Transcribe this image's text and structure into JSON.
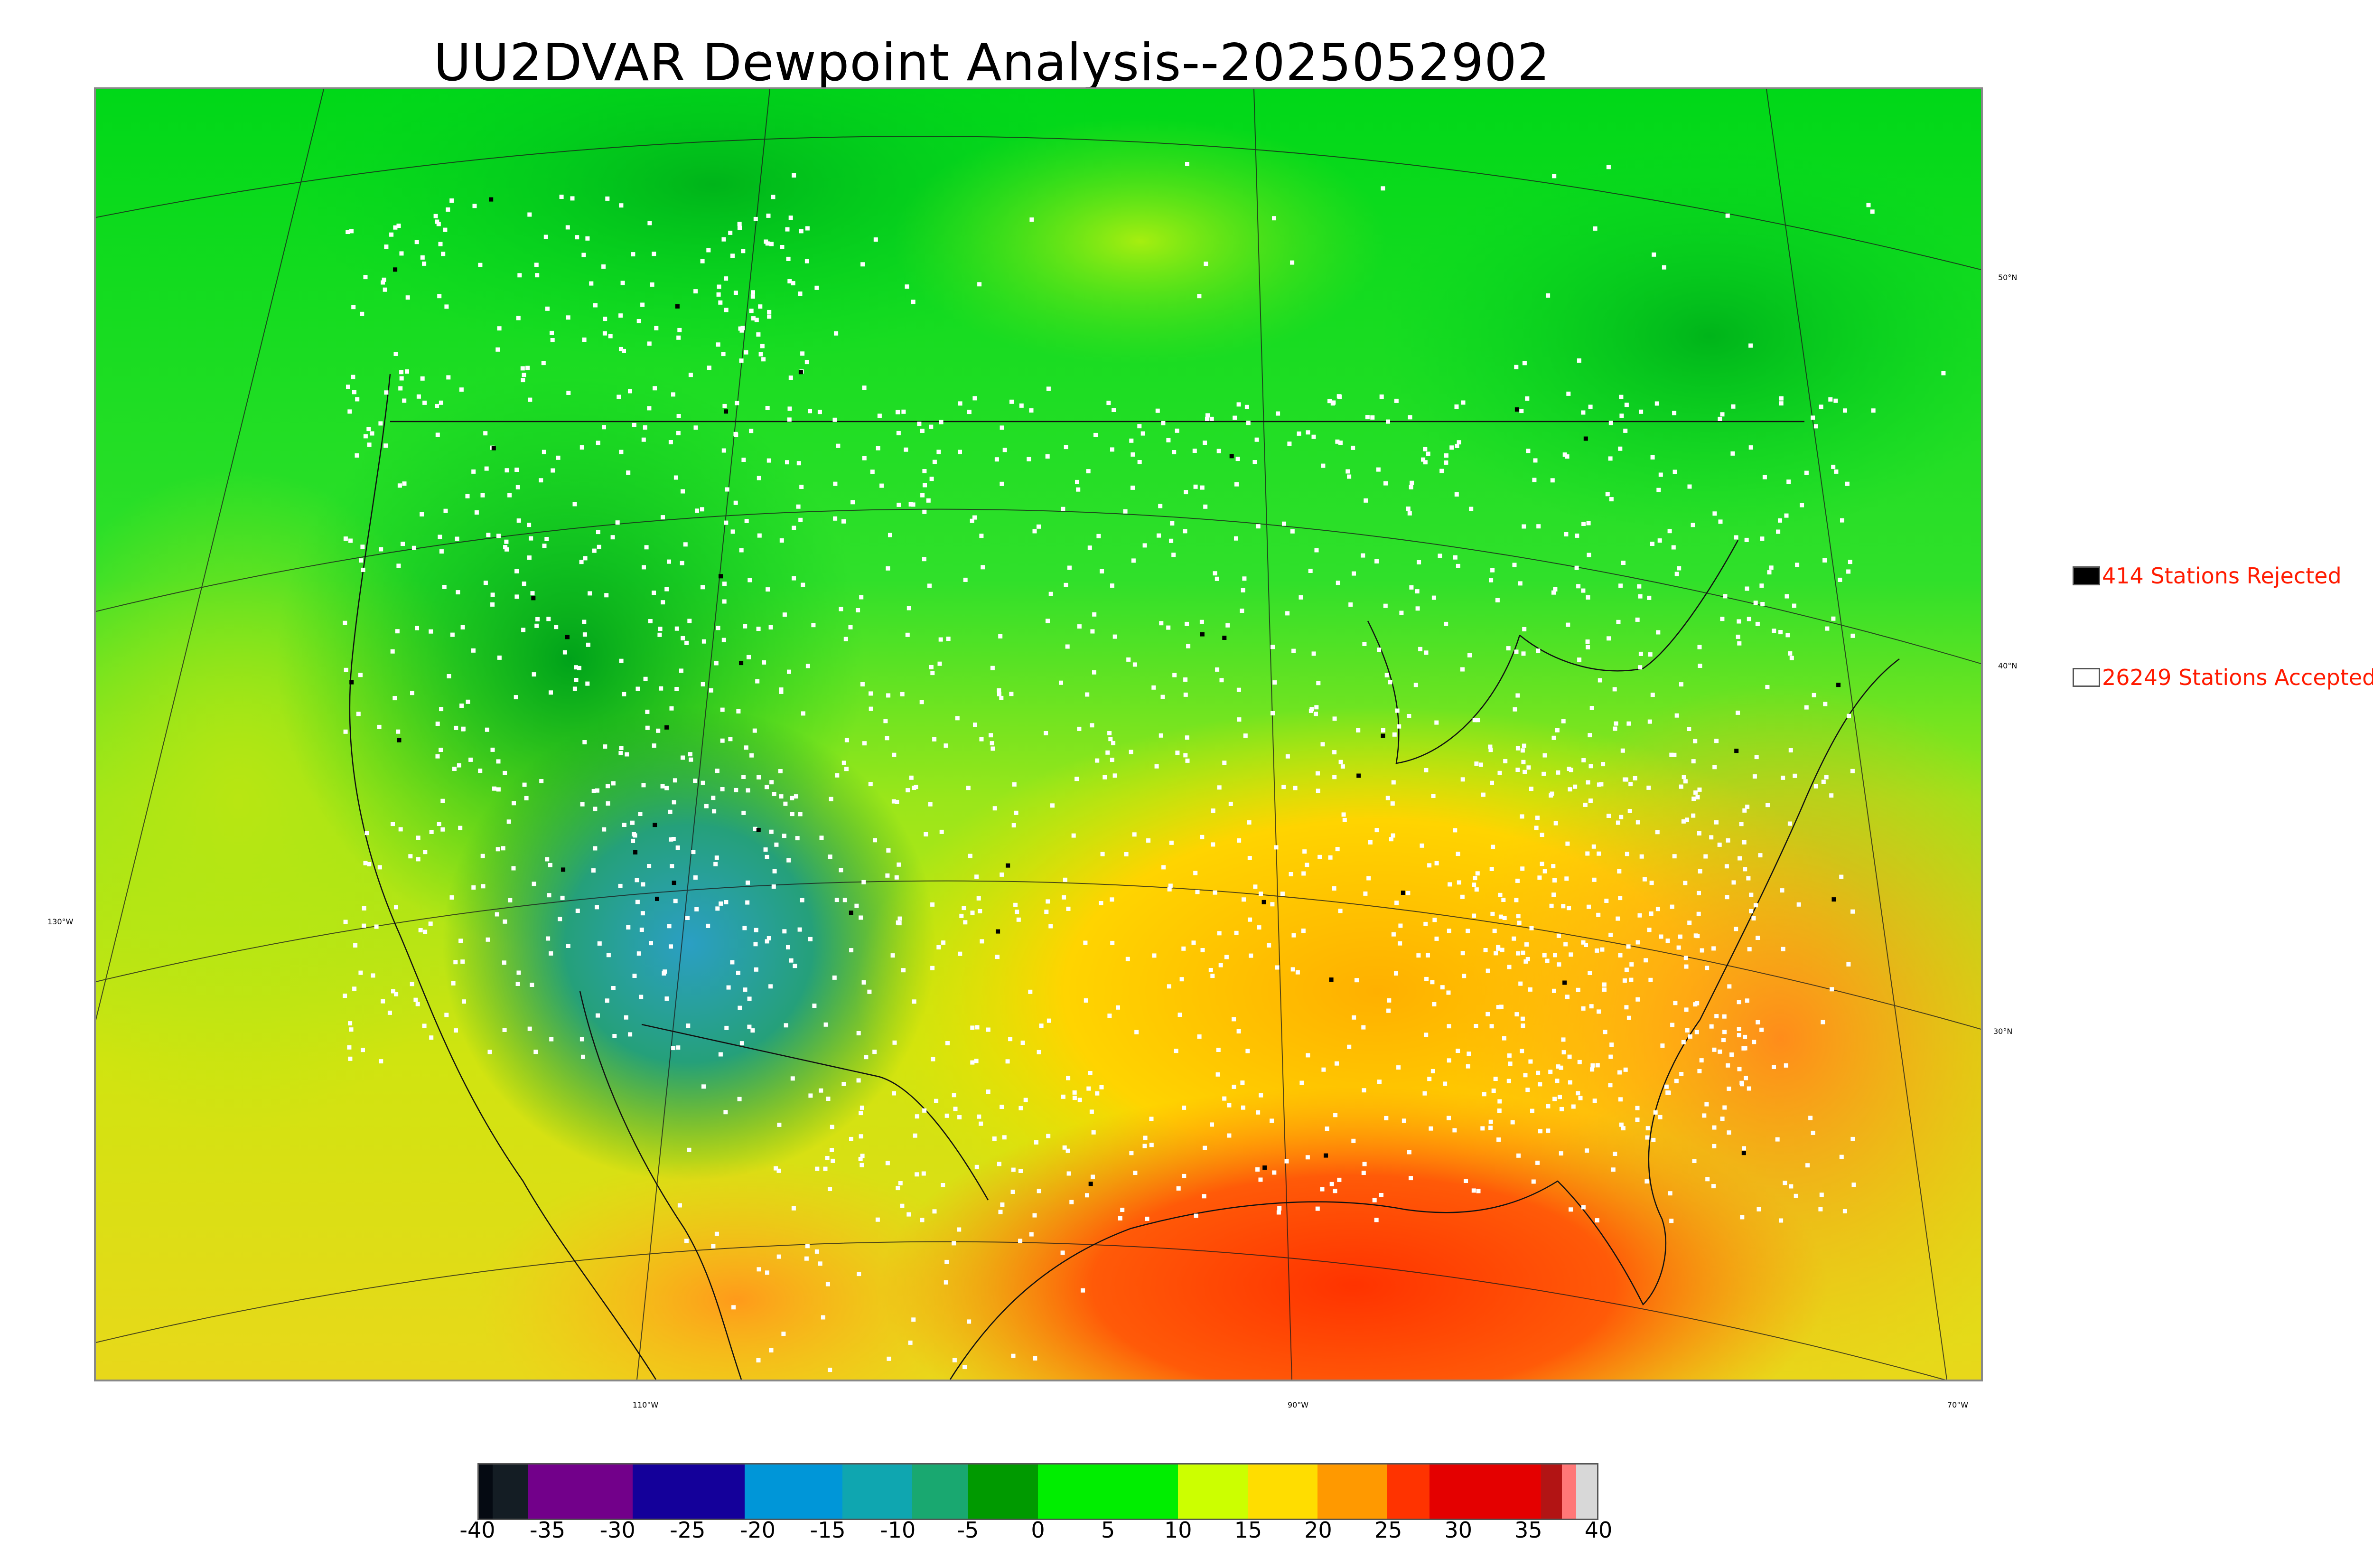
{
  "title": "UU2DVAR Dewpoint Analysis--2025052902",
  "legend": {
    "rejected": {
      "count": 414,
      "label": "414 Stations Rejected",
      "swatch_color": "#000000"
    },
    "accepted": {
      "count": 26249,
      "label": "26249 Stations Accepted",
      "swatch_color": "#ffffff"
    }
  },
  "lat_labels": [
    "50°N",
    "40°N",
    "30°N"
  ],
  "lon_labels": [
    "130°W",
    "110°W",
    "90°W",
    "70°W"
  ],
  "colorbar": {
    "tick_labels": [
      "-40",
      "-35",
      "-30",
      "-25",
      "-20",
      "-15",
      "-10",
      "-5",
      "0",
      "5",
      "10",
      "15",
      "20",
      "25",
      "30",
      "35",
      "40"
    ],
    "range": [
      -40,
      40
    ],
    "bands": [
      {
        "from": -40,
        "to": -39,
        "color": "#050a12"
      },
      {
        "from": -39,
        "to": -36.5,
        "color": "#141d24"
      },
      {
        "from": -36.5,
        "to": -29,
        "color": "#72008a"
      },
      {
        "from": -29,
        "to": -21,
        "color": "#14009a"
      },
      {
        "from": -21,
        "to": -14,
        "color": "#0096d8"
      },
      {
        "from": -14,
        "to": -9,
        "color": "#0fa6b0"
      },
      {
        "from": -9,
        "to": -5,
        "color": "#19a870"
      },
      {
        "from": -5,
        "to": 0,
        "color": "#009a00"
      },
      {
        "from": 0,
        "to": 10,
        "color": "#00ee00"
      },
      {
        "from": 10,
        "to": 15,
        "color": "#ccff00"
      },
      {
        "from": 15,
        "to": 20,
        "color": "#ffdd00"
      },
      {
        "from": 20,
        "to": 25,
        "color": "#ff9900"
      },
      {
        "from": 25,
        "to": 28,
        "color": "#ff3300"
      },
      {
        "from": 28,
        "to": 36,
        "color": "#e40000"
      },
      {
        "from": 36,
        "to": 37.5,
        "color": "#b21414"
      },
      {
        "from": 37.5,
        "to": 38.5,
        "color": "#ff7777"
      },
      {
        "from": 38.5,
        "to": 40,
        "color": "#d8d8d8"
      }
    ]
  }
}
